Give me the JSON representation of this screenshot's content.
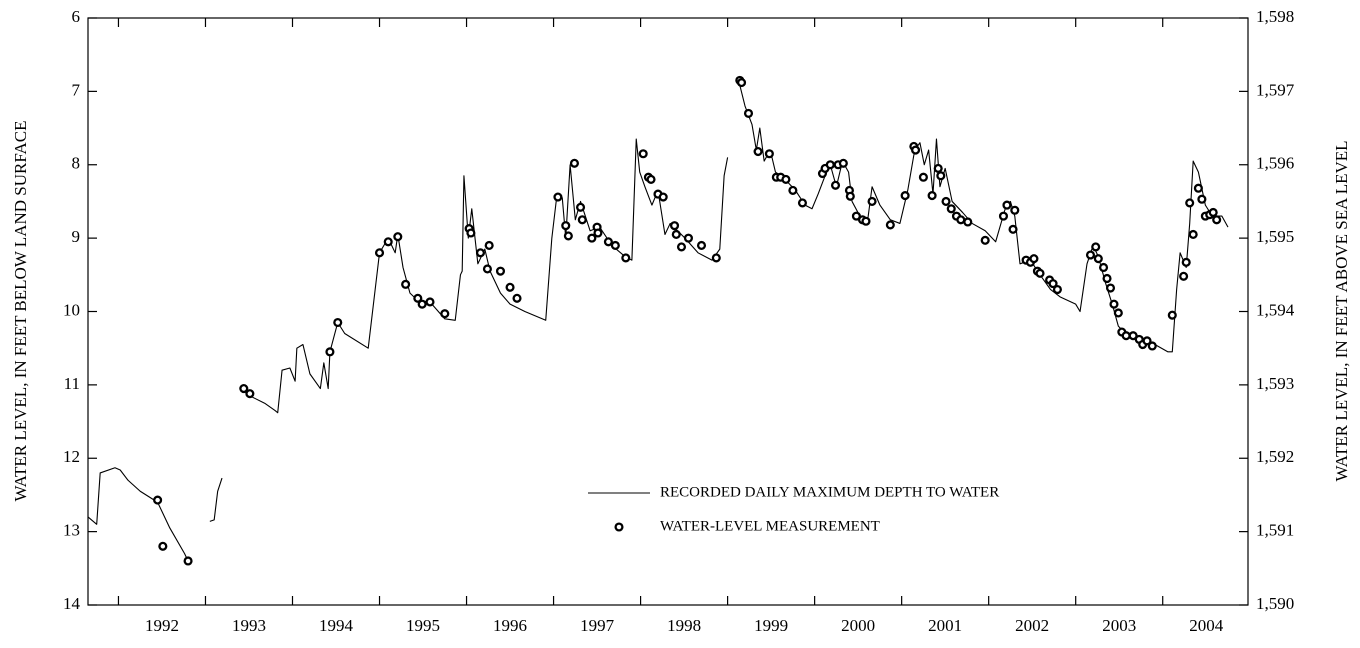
{
  "chart_data": {
    "type": "line",
    "y_label": "WATER LEVEL, IN FEET BELOW LAND SURFACE",
    "y2_label": "WATER LEVEL, IN FEET ABOVE SEA LEVEL",
    "xlim": [
      1991.65,
      2004.98
    ],
    "xticks": [
      {
        "value": 1992.5,
        "label": "1992"
      },
      {
        "value": 1993.5,
        "label": "1993"
      },
      {
        "value": 1994.5,
        "label": "1994"
      },
      {
        "value": 1995.5,
        "label": "1995"
      },
      {
        "value": 1996.5,
        "label": "1996"
      },
      {
        "value": 1997.5,
        "label": "1997"
      },
      {
        "value": 1998.5,
        "label": "1998"
      },
      {
        "value": 1999.5,
        "label": "1999"
      },
      {
        "value": 2000.5,
        "label": "2000"
      },
      {
        "value": 2001.5,
        "label": "2001"
      },
      {
        "value": 2002.5,
        "label": "2002"
      },
      {
        "value": 2003.5,
        "label": "2003"
      },
      {
        "value": 2004.5,
        "label": "2004"
      }
    ],
    "xtick_marks": [
      1992,
      1993,
      1994,
      1995,
      1996,
      1997,
      1998,
      1999,
      2000,
      2001,
      2002,
      2003,
      2004
    ],
    "ylim": [
      14,
      6
    ],
    "yticks": [
      6,
      7,
      8,
      9,
      10,
      11,
      12,
      13,
      14
    ],
    "y2lim": [
      1590,
      1598
    ],
    "y2ticks": [
      {
        "value": 1590,
        "label": "1,590"
      },
      {
        "value": 1591,
        "label": "1,591"
      },
      {
        "value": 1592,
        "label": "1,592"
      },
      {
        "value": 1593,
        "label": "1,593"
      },
      {
        "value": 1594,
        "label": "1,594"
      },
      {
        "value": 1595,
        "label": "1,595"
      },
      {
        "value": 1596,
        "label": "1,596"
      },
      {
        "value": 1597,
        "label": "1,597"
      },
      {
        "value": 1598,
        "label": "1,598"
      }
    ],
    "grid": false,
    "series": [
      {
        "name": "RECORDED DAILY MAXIMUM DEPTH TO WATER",
        "type": "line",
        "color": "#000000",
        "x": [
          1991.65,
          1991.75,
          1991.79,
          1991.96,
          1992.02,
          1992.11,
          1992.25,
          1992.45,
          1992.59,
          1992.76,
          1992.8,
          null,
          1993.05,
          1993.1,
          1993.14,
          1993.19,
          null,
          1993.44,
          1993.51,
          1993.68,
          1993.8,
          1993.83,
          1993.88,
          1993.97,
          1994.03,
          1994.05,
          1994.12,
          1994.2,
          1994.32,
          1994.36,
          1994.41,
          1994.43,
          1994.52,
          1994.6,
          1994.87,
          1994.95,
          1995.0,
          1995.1,
          1995.18,
          1995.21,
          1995.27,
          1995.35,
          1995.44,
          1995.58,
          1995.75,
          1995.87,
          1995.93,
          1995.95,
          1995.97,
          1996.02,
          1996.06,
          1996.13,
          1996.21,
          1996.27,
          1996.39,
          1996.5,
          1996.67,
          1996.91,
          1996.98,
          1997.04,
          1997.1,
          1997.14,
          1997.19,
          1997.25,
          1997.31,
          1997.42,
          1997.53,
          1997.67,
          1997.82,
          1997.9,
          1997.95,
          1997.99,
          1998.05,
          1998.13,
          1998.2,
          1998.28,
          1998.34,
          1998.51,
          1998.66,
          1998.82,
          1998.91,
          1998.96,
          1999.0,
          null,
          1999.12,
          1999.2,
          1999.28,
          1999.33,
          1999.37,
          1999.42,
          1999.49,
          1999.55,
          1999.66,
          1999.78,
          1999.89,
          1999.97,
          2000.04,
          2000.12,
          2000.18,
          2000.25,
          2000.32,
          2000.39,
          2000.43,
          2000.52,
          2000.61,
          2000.66,
          2000.75,
          2000.87,
          2000.98,
          2001.07,
          2001.15,
          2001.21,
          2001.26,
          2001.31,
          2001.36,
          2001.4,
          2001.44,
          2001.5,
          2001.58,
          2001.7,
          2001.81,
          2001.96,
          2002.08,
          2002.19,
          2002.25,
          2002.3,
          2002.36,
          2002.48,
          2002.59,
          2002.71,
          2002.82,
          2003.0,
          2003.05,
          2003.13,
          2003.2,
          2003.26,
          2003.34,
          2003.42,
          2003.49,
          2003.57,
          2003.74,
          2003.91,
          2004.06,
          2004.11,
          2004.16,
          2004.2,
          2004.27,
          2004.31,
          2004.35,
          2004.41,
          2004.49,
          2004.57,
          2004.68,
          2004.75
        ],
        "values": [
          12.8,
          12.9,
          12.2,
          12.13,
          12.16,
          12.3,
          12.45,
          12.6,
          12.95,
          13.3,
          13.4,
          null,
          12.86,
          12.84,
          12.45,
          12.27,
          null,
          11.05,
          11.15,
          11.25,
          11.35,
          11.38,
          10.8,
          10.77,
          10.95,
          10.5,
          10.45,
          10.85,
          11.05,
          10.7,
          11.05,
          10.55,
          10.15,
          10.3,
          10.5,
          9.7,
          9.2,
          9.0,
          9.2,
          8.95,
          9.4,
          9.75,
          9.85,
          9.87,
          10.1,
          10.12,
          9.5,
          9.45,
          8.15,
          9.0,
          8.6,
          9.35,
          9.15,
          9.45,
          9.75,
          9.9,
          10.0,
          10.12,
          9.0,
          8.4,
          8.45,
          9.0,
          8.0,
          8.75,
          8.5,
          8.9,
          8.85,
          9.1,
          9.25,
          9.3,
          7.65,
          8.1,
          8.3,
          8.55,
          8.35,
          8.95,
          8.8,
          9.0,
          9.2,
          9.3,
          9.15,
          8.15,
          7.9,
          null,
          6.82,
          7.2,
          7.45,
          7.8,
          7.5,
          7.95,
          7.8,
          8.1,
          8.2,
          8.35,
          8.55,
          8.6,
          8.4,
          8.15,
          8.0,
          8.3,
          7.95,
          8.1,
          8.5,
          8.7,
          8.75,
          8.3,
          8.55,
          8.75,
          8.8,
          8.35,
          7.8,
          7.7,
          8.0,
          7.8,
          8.4,
          7.65,
          8.3,
          8.05,
          8.5,
          8.65,
          8.8,
          8.9,
          9.05,
          8.6,
          8.5,
          8.7,
          9.35,
          9.3,
          9.5,
          9.7,
          9.8,
          9.9,
          10.0,
          9.35,
          9.1,
          9.25,
          9.6,
          9.9,
          10.2,
          10.3,
          10.4,
          10.45,
          10.55,
          10.55,
          9.7,
          9.2,
          9.4,
          8.8,
          7.95,
          8.1,
          8.55,
          8.7,
          8.7,
          8.85
        ]
      },
      {
        "name": "WATER-LEVEL MEASUREMENT",
        "type": "scatter",
        "color": "#000000",
        "x": [
          1992.45,
          1992.51,
          1992.8,
          1993.44,
          1993.51,
          1994.43,
          1994.52,
          1995.0,
          1995.1,
          1995.21,
          1995.3,
          1995.44,
          1995.49,
          1995.58,
          1995.75,
          1996.03,
          1996.05,
          1996.16,
          1996.24,
          1996.26,
          1996.39,
          1996.5,
          1996.58,
          1997.05,
          1997.14,
          1997.17,
          1997.24,
          1997.31,
          1997.33,
          1997.44,
          1997.5,
          1997.51,
          1997.63,
          1997.71,
          1997.83,
          1998.03,
          1998.09,
          1998.12,
          1998.2,
          1998.26,
          1998.39,
          1998.41,
          1998.47,
          1998.55,
          1998.7,
          1998.87,
          1999.14,
          1999.16,
          1999.24,
          1999.35,
          1999.48,
          1999.56,
          1999.61,
          1999.67,
          1999.75,
          1999.86,
          2000.09,
          2000.12,
          2000.18,
          2000.24,
          2000.27,
          2000.33,
          2000.4,
          2000.41,
          2000.48,
          2000.55,
          2000.59,
          2000.66,
          2000.87,
          2001.04,
          2001.14,
          2001.16,
          2001.25,
          2001.35,
          2001.42,
          2001.45,
          2001.51,
          2001.57,
          2001.63,
          2001.68,
          2001.76,
          2001.96,
          2002.17,
          2002.21,
          2002.28,
          2002.3,
          2002.43,
          2002.48,
          2002.52,
          2002.56,
          2002.59,
          2002.7,
          2002.74,
          2002.79,
          2003.17,
          2003.23,
          2003.26,
          2003.32,
          2003.36,
          2003.4,
          2003.44,
          2003.49,
          2003.53,
          2003.58,
          2003.66,
          2003.73,
          2003.77,
          2003.82,
          2003.88,
          2004.11,
          2004.24,
          2004.27,
          2004.31,
          2004.35,
          2004.41,
          2004.45,
          2004.49,
          2004.54,
          2004.58,
          2004.62
        ],
        "values": [
          12.57,
          13.2,
          13.4,
          11.05,
          11.12,
          10.55,
          10.15,
          9.2,
          9.05,
          8.98,
          9.63,
          9.82,
          9.9,
          9.87,
          10.03,
          8.87,
          8.93,
          9.2,
          9.42,
          9.1,
          9.45,
          9.67,
          9.82,
          8.44,
          8.83,
          8.97,
          7.98,
          8.58,
          8.75,
          9.0,
          8.85,
          8.93,
          9.05,
          9.1,
          9.27,
          7.85,
          8.17,
          8.2,
          8.4,
          8.44,
          8.83,
          8.95,
          9.12,
          9.0,
          9.1,
          9.27,
          6.85,
          6.88,
          7.3,
          7.82,
          7.85,
          8.17,
          8.17,
          8.2,
          8.35,
          8.52,
          8.12,
          8.05,
          8.0,
          8.28,
          8.0,
          7.98,
          8.35,
          8.43,
          8.7,
          8.75,
          8.77,
          8.5,
          8.82,
          8.42,
          7.75,
          7.8,
          8.17,
          8.42,
          8.05,
          8.15,
          8.5,
          8.6,
          8.7,
          8.75,
          8.78,
          9.03,
          8.7,
          8.55,
          8.88,
          8.62,
          9.3,
          9.33,
          9.28,
          9.45,
          9.48,
          9.57,
          9.62,
          9.7,
          9.23,
          9.12,
          9.28,
          9.4,
          9.55,
          9.68,
          9.9,
          10.02,
          10.28,
          10.33,
          10.33,
          10.38,
          10.45,
          10.4,
          10.47,
          10.05,
          9.52,
          9.33,
          8.52,
          8.95,
          8.32,
          8.47,
          8.7,
          8.68,
          8.65,
          8.75
        ]
      }
    ]
  }
}
